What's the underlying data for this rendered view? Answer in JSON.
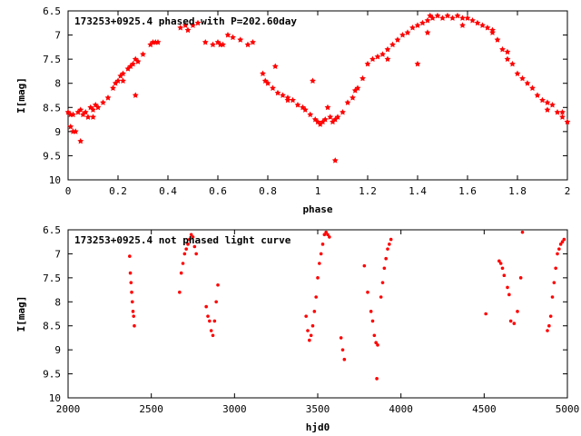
{
  "chart_data": [
    {
      "type": "scatter",
      "title": "173253+0925.4 phased with P=202.60day",
      "xlabel": "phase",
      "ylabel": "I[mag]",
      "xlim": [
        0,
        2
      ],
      "ylim": [
        6.5,
        10
      ],
      "y_inverted": true,
      "xticks": [
        "0",
        "0.2",
        "0.4",
        "0.6",
        "0.8",
        "1",
        "1.2",
        "1.4",
        "1.6",
        "1.8",
        "2"
      ],
      "yticks": [
        "6.5",
        "7",
        "7.5",
        "8",
        "8.5",
        "9",
        "9.5",
        "10"
      ],
      "marker": "star",
      "color": "#ff0000",
      "x": [
        0.0,
        0.01,
        0.02,
        0.03,
        0.04,
        0.05,
        0.06,
        0.07,
        0.08,
        0.09,
        0.1,
        0.11,
        0.12,
        0.14,
        0.16,
        0.18,
        0.19,
        0.2,
        0.21,
        0.22,
        0.24,
        0.25,
        0.26,
        0.27,
        0.28,
        0.3,
        0.33,
        0.34,
        0.36,
        0.45,
        0.47,
        0.5,
        0.52,
        0.55,
        0.58,
        0.6,
        0.61,
        0.66,
        0.69,
        0.72,
        0.74,
        0.78,
        0.79,
        0.8,
        0.82,
        0.84,
        0.86,
        0.88,
        0.9,
        0.92,
        0.94,
        0.95,
        0.97,
        0.99,
        1.0,
        1.01,
        1.02,
        1.03,
        1.05,
        1.06,
        1.07,
        1.08,
        1.1,
        1.12,
        1.14,
        1.16,
        1.18,
        1.2,
        1.22,
        1.24,
        1.26,
        1.28,
        1.3,
        1.32,
        1.34,
        1.36,
        1.38,
        1.4,
        1.42,
        1.44,
        1.45,
        1.46,
        1.48,
        1.5,
        1.52,
        1.54,
        1.56,
        1.58,
        1.6,
        1.62,
        1.64,
        1.66,
        1.68,
        1.7,
        1.72,
        1.74,
        1.76,
        1.78,
        1.8,
        1.82,
        1.84,
        1.86,
        1.88,
        1.9,
        1.92,
        1.94,
        1.96,
        1.98,
        2.0,
        0.02,
        0.05,
        0.27,
        0.64,
        0.83,
        0.98,
        1.07,
        1.4,
        1.7,
        1.98,
        0.01,
        0.1,
        0.22,
        0.35,
        0.48,
        0.62,
        0.88,
        1.04,
        1.15,
        1.28,
        1.44,
        1.58,
        1.76,
        1.92
      ],
      "y": [
        8.6,
        8.9,
        8.65,
        9.0,
        8.6,
        8.55,
        8.65,
        8.6,
        8.7,
        8.5,
        8.55,
        8.45,
        8.5,
        8.4,
        8.3,
        8.1,
        8.0,
        7.95,
        7.85,
        7.8,
        7.7,
        7.65,
        7.6,
        7.5,
        7.55,
        7.4,
        7.2,
        7.15,
        7.15,
        6.85,
        6.8,
        6.8,
        6.75,
        7.15,
        7.2,
        7.15,
        7.2,
        7.05,
        7.1,
        7.2,
        7.15,
        7.8,
        7.95,
        8.0,
        8.1,
        8.2,
        8.25,
        8.3,
        8.35,
        8.45,
        8.5,
        8.55,
        8.65,
        8.75,
        8.8,
        8.85,
        8.8,
        8.75,
        8.7,
        8.8,
        8.75,
        8.7,
        8.6,
        8.4,
        8.3,
        8.1,
        7.9,
        7.6,
        7.5,
        7.45,
        7.4,
        7.3,
        7.2,
        7.1,
        7.0,
        6.95,
        6.85,
        6.8,
        6.75,
        6.7,
        6.6,
        6.65,
        6.6,
        6.65,
        6.6,
        6.65,
        6.6,
        6.65,
        6.65,
        6.7,
        6.75,
        6.8,
        6.85,
        6.95,
        7.1,
        7.3,
        7.5,
        7.6,
        7.8,
        7.9,
        8.0,
        8.1,
        8.25,
        8.35,
        8.4,
        8.45,
        8.6,
        8.7,
        8.8,
        9.0,
        9.2,
        8.25,
        7.0,
        7.65,
        7.95,
        9.6,
        7.6,
        6.9,
        8.6,
        8.65,
        8.7,
        7.95,
        7.15,
        6.9,
        7.2,
        8.35,
        8.5,
        8.15,
        7.5,
        6.95,
        6.8,
        7.35,
        8.55
      ]
    },
    {
      "type": "scatter",
      "title": "173253+0925.4 not phased light curve",
      "xlabel": "hjd0",
      "ylabel": "I[mag]",
      "xlim": [
        2000,
        5000
      ],
      "ylim": [
        6.5,
        10
      ],
      "y_inverted": true,
      "xticks": [
        "2000",
        "2500",
        "3000",
        "3500",
        "4000",
        "4500",
        "5000"
      ],
      "yticks": [
        "6.5",
        "7",
        "7.5",
        "8",
        "8.5",
        "9",
        "9.5",
        "10"
      ],
      "marker": "dot",
      "color": "#ff0000",
      "x": [
        2370,
        2374,
        2378,
        2382,
        2386,
        2390,
        2394,
        2398,
        2670,
        2680,
        2690,
        2700,
        2710,
        2720,
        2730,
        2740,
        2750,
        2760,
        2770,
        2830,
        2840,
        2850,
        2860,
        2870,
        2880,
        2890,
        2900,
        3430,
        3440,
        3450,
        3460,
        3470,
        3480,
        3490,
        3500,
        3510,
        3520,
        3530,
        3540,
        3550,
        3560,
        3570,
        3640,
        3650,
        3660,
        3780,
        3800,
        3820,
        3830,
        3840,
        3850,
        3860,
        3855,
        3880,
        3890,
        3900,
        3910,
        3920,
        3930,
        3940,
        4510,
        4590,
        4600,
        4610,
        4620,
        4640,
        4650,
        4660,
        4680,
        4700,
        4720,
        4730,
        4880,
        4890,
        4900,
        4910,
        4920,
        4930,
        4940,
        4950,
        4960,
        4970,
        4980
      ],
      "y": [
        7.05,
        7.4,
        7.6,
        7.8,
        8.0,
        8.2,
        8.3,
        8.5,
        7.8,
        7.4,
        7.2,
        7.0,
        6.9,
        6.8,
        6.7,
        6.6,
        6.65,
        6.85,
        7.0,
        8.1,
        8.3,
        8.4,
        8.6,
        8.7,
        8.4,
        8.0,
        7.65,
        8.3,
        8.6,
        8.8,
        8.7,
        8.5,
        8.2,
        7.9,
        7.5,
        7.2,
        7.0,
        6.8,
        6.6,
        6.55,
        6.6,
        6.65,
        8.75,
        9.0,
        9.2,
        7.25,
        7.8,
        8.2,
        8.4,
        8.7,
        8.85,
        8.9,
        9.6,
        7.9,
        7.6,
        7.3,
        7.1,
        6.9,
        6.8,
        6.7,
        8.25,
        7.15,
        7.2,
        7.3,
        7.45,
        7.7,
        7.85,
        8.4,
        8.45,
        8.2,
        7.5,
        6.55,
        8.6,
        8.5,
        8.3,
        7.9,
        7.6,
        7.3,
        7.0,
        6.9,
        6.8,
        6.75,
        6.7
      ]
    }
  ]
}
